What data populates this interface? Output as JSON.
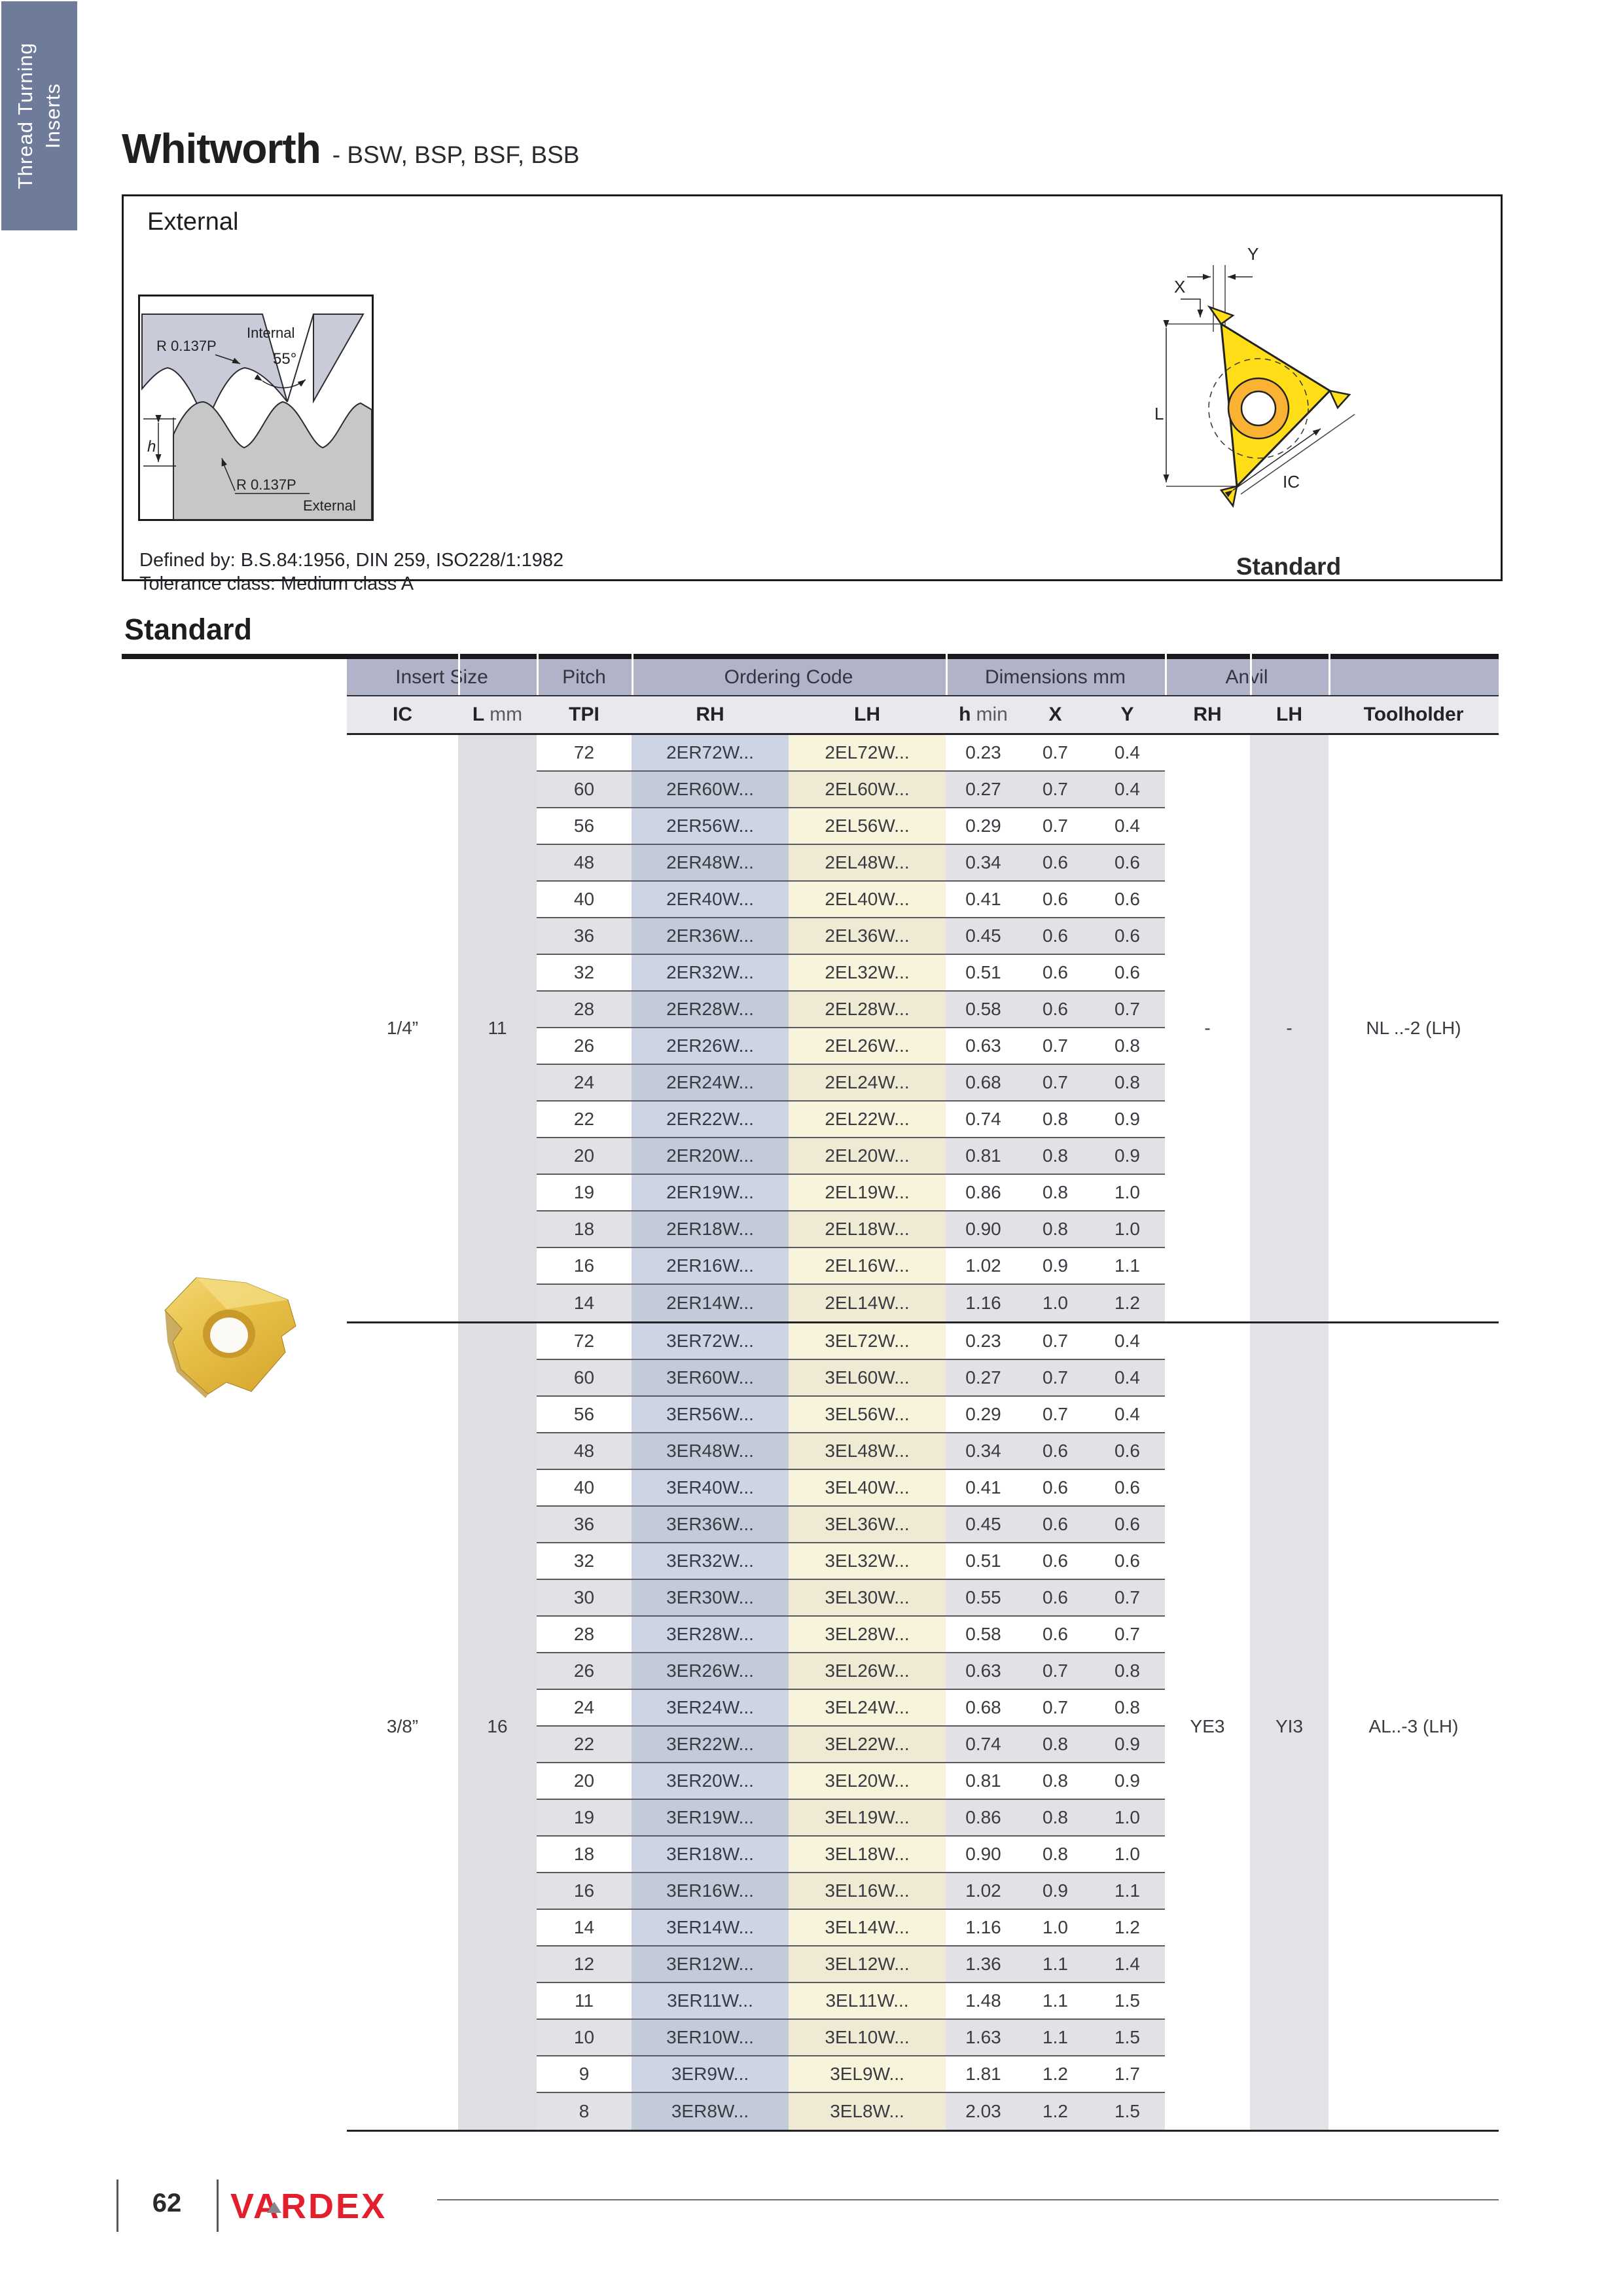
{
  "sidebar": {
    "line1": "Thread Turning",
    "line2": "Inserts"
  },
  "page": {
    "title": "Whitworth",
    "subtitle": "- BSW, BSP, BSF, BSB",
    "external_label": "External",
    "defined_by": "Defined by: B.S.84:1956, DIN 259, ISO228/1:1982",
    "tolerance": "Tolerance class: Medium class A",
    "standard_caption": "Standard",
    "table_title": "Standard"
  },
  "profile_diagram": {
    "r_top": "R 0.137P",
    "internal": "Internal",
    "angle": "55°",
    "h": "h",
    "r_bottom": "R 0.137P",
    "external": "External"
  },
  "insert_diagram": {
    "x": "X",
    "y": "Y",
    "l": "L",
    "ic": "IC"
  },
  "table": {
    "groups": {
      "insert_size": "Insert Size",
      "pitch": "Pitch",
      "ordering_code": "Ordering Code",
      "dimensions": "Dimensions mm",
      "anvil": "Anvil"
    },
    "columns": {
      "ic": "IC",
      "l_main": "L",
      "l_unit": "mm",
      "tpi": "TPI",
      "rh": "RH",
      "lh": "LH",
      "h_main": "h",
      "h_unit": "min",
      "x": "X",
      "y": "Y",
      "anvil_rh": "RH",
      "anvil_lh": "LH",
      "toolholder": "Toolholder"
    },
    "sections": [
      {
        "ic": "1/4”",
        "l": "11",
        "anvil_rh": "-",
        "anvil_lh": "-",
        "toolholder": "NL ..-2 (LH)",
        "rows": [
          [
            "72",
            "2ER72W...",
            "2EL72W...",
            "0.23",
            "0.7",
            "0.4"
          ],
          [
            "60",
            "2ER60W...",
            "2EL60W...",
            "0.27",
            "0.7",
            "0.4"
          ],
          [
            "56",
            "2ER56W...",
            "2EL56W...",
            "0.29",
            "0.7",
            "0.4"
          ],
          [
            "48",
            "2ER48W...",
            "2EL48W...",
            "0.34",
            "0.6",
            "0.6"
          ],
          [
            "40",
            "2ER40W...",
            "2EL40W...",
            "0.41",
            "0.6",
            "0.6"
          ],
          [
            "36",
            "2ER36W...",
            "2EL36W...",
            "0.45",
            "0.6",
            "0.6"
          ],
          [
            "32",
            "2ER32W...",
            "2EL32W...",
            "0.51",
            "0.6",
            "0.6"
          ],
          [
            "28",
            "2ER28W...",
            "2EL28W...",
            "0.58",
            "0.6",
            "0.7"
          ],
          [
            "26",
            "2ER26W...",
            "2EL26W...",
            "0.63",
            "0.7",
            "0.8"
          ],
          [
            "24",
            "2ER24W...",
            "2EL24W...",
            "0.68",
            "0.7",
            "0.8"
          ],
          [
            "22",
            "2ER22W...",
            "2EL22W...",
            "0.74",
            "0.8",
            "0.9"
          ],
          [
            "20",
            "2ER20W...",
            "2EL20W...",
            "0.81",
            "0.8",
            "0.9"
          ],
          [
            "19",
            "2ER19W...",
            "2EL19W...",
            "0.86",
            "0.8",
            "1.0"
          ],
          [
            "18",
            "2ER18W...",
            "2EL18W...",
            "0.90",
            "0.8",
            "1.0"
          ],
          [
            "16",
            "2ER16W...",
            "2EL16W...",
            "1.02",
            "0.9",
            "1.1"
          ],
          [
            "14",
            "2ER14W...",
            "2EL14W...",
            "1.16",
            "1.0",
            "1.2"
          ]
        ]
      },
      {
        "ic": "3/8”",
        "l": "16",
        "anvil_rh": "YE3",
        "anvil_lh": "YI3",
        "toolholder": "AL..-3 (LH)",
        "rows": [
          [
            "72",
            "3ER72W...",
            "3EL72W...",
            "0.23",
            "0.7",
            "0.4"
          ],
          [
            "60",
            "3ER60W...",
            "3EL60W...",
            "0.27",
            "0.7",
            "0.4"
          ],
          [
            "56",
            "3ER56W...",
            "3EL56W...",
            "0.29",
            "0.7",
            "0.4"
          ],
          [
            "48",
            "3ER48W...",
            "3EL48W...",
            "0.34",
            "0.6",
            "0.6"
          ],
          [
            "40",
            "3ER40W...",
            "3EL40W...",
            "0.41",
            "0.6",
            "0.6"
          ],
          [
            "36",
            "3ER36W...",
            "3EL36W...",
            "0.45",
            "0.6",
            "0.6"
          ],
          [
            "32",
            "3ER32W...",
            "3EL32W...",
            "0.51",
            "0.6",
            "0.6"
          ],
          [
            "30",
            "3ER30W...",
            "3EL30W...",
            "0.55",
            "0.6",
            "0.7"
          ],
          [
            "28",
            "3ER28W...",
            "3EL28W...",
            "0.58",
            "0.6",
            "0.7"
          ],
          [
            "26",
            "3ER26W...",
            "3EL26W...",
            "0.63",
            "0.7",
            "0.8"
          ],
          [
            "24",
            "3ER24W...",
            "3EL24W...",
            "0.68",
            "0.7",
            "0.8"
          ],
          [
            "22",
            "3ER22W...",
            "3EL22W...",
            "0.74",
            "0.8",
            "0.9"
          ],
          [
            "20",
            "3ER20W...",
            "3EL20W...",
            "0.81",
            "0.8",
            "0.9"
          ],
          [
            "19",
            "3ER19W...",
            "3EL19W...",
            "0.86",
            "0.8",
            "1.0"
          ],
          [
            "18",
            "3ER18W...",
            "3EL18W...",
            "0.90",
            "0.8",
            "1.0"
          ],
          [
            "16",
            "3ER16W...",
            "3EL16W...",
            "1.02",
            "0.9",
            "1.1"
          ],
          [
            "14",
            "3ER14W...",
            "3EL14W...",
            "1.16",
            "1.0",
            "1.2"
          ],
          [
            "12",
            "3ER12W...",
            "3EL12W...",
            "1.36",
            "1.1",
            "1.4"
          ],
          [
            "11",
            "3ER11W...",
            "3EL11W...",
            "1.48",
            "1.1",
            "1.5"
          ],
          [
            "10",
            "3ER10W...",
            "3EL10W...",
            "1.63",
            "1.1",
            "1.5"
          ],
          [
            "9",
            "3ER9W...",
            "3EL9W...",
            "1.81",
            "1.2",
            "1.7"
          ],
          [
            "8",
            "3ER8W...",
            "3EL8W...",
            "2.03",
            "1.2",
            "1.5"
          ]
        ]
      }
    ]
  },
  "footer": {
    "page": "62",
    "brand": "VARDEX"
  },
  "colors": {
    "tab_bg": "#6f7b9b",
    "accent_band": "#b1b3c8",
    "subheader_bg": "#e9e9ed",
    "row_alt": "#e2e2e6",
    "col_stripe": "#dfdfe3",
    "anvil_stripe": "#e3e3e7",
    "rh_on_white": "#cdd5e4",
    "rh_on_alt": "#c3cbda",
    "lh_on_white": "#f8f4dc",
    "lh_on_alt": "#eeead3",
    "logo_red": "#e41f2d",
    "insert_yellow": "#ffd21e",
    "diagram_internal": "#c9ccd8",
    "diagram_external": "#c5c8c7"
  }
}
